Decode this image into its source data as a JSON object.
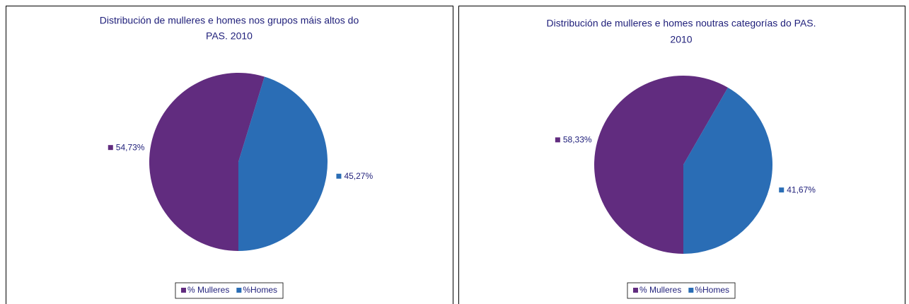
{
  "chart_data": [
    {
      "type": "pie",
      "title": [
        "Distribución de mulleres e homes nos grupos máis altos do",
        "PAS. 2010"
      ],
      "categories": [
        "% Mulleres",
        "%Homes"
      ],
      "values": [
        54.73,
        45.27
      ],
      "value_labels": [
        "54,73%",
        "45,27%"
      ],
      "colors": [
        "#612c7f",
        "#2a6db5"
      ],
      "legend": "bottom"
    },
    {
      "type": "pie",
      "title": [
        "Distribución de mulleres e homes noutras categorías do PAS.",
        "2010"
      ],
      "categories": [
        "% Mulleres",
        "%Homes"
      ],
      "values": [
        58.33,
        41.67
      ],
      "value_labels": [
        "58,33%",
        "41,67%"
      ],
      "colors": [
        "#612c7f",
        "#2a6db5"
      ],
      "legend": "bottom"
    }
  ]
}
